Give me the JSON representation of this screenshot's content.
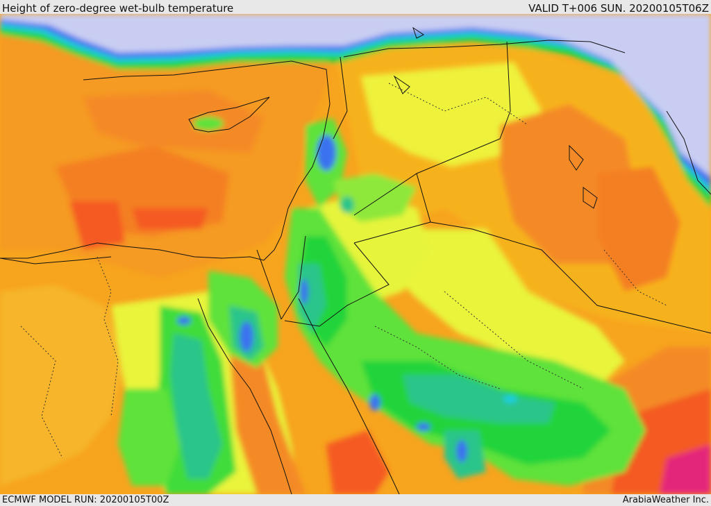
{
  "header": {
    "title": "Height of zero-degree wet-bulb temperature",
    "valid_time": "VALID T+006 SUN. 20200105T06Z"
  },
  "footer": {
    "model_run": "ECMWF MODEL RUN: 20200105T00Z",
    "credit": "ArabiaWeather Inc."
  }
}
